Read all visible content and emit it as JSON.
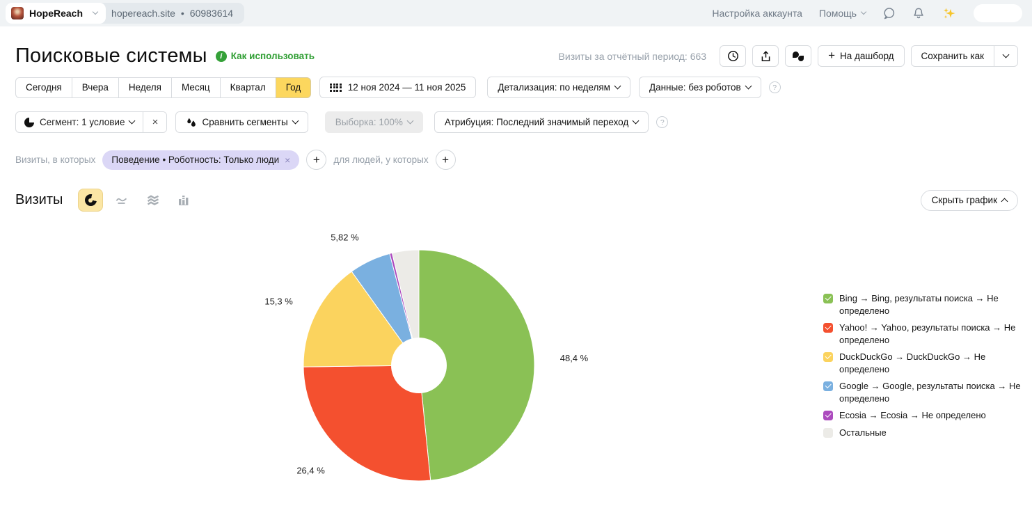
{
  "topbar": {
    "counter_name": "HopeReach",
    "site_domain": "hopereach.site",
    "separator": "•",
    "counter_id": "60983614",
    "account_settings": "Настройка аккаунта",
    "help": "Помощь"
  },
  "header": {
    "title": "Поисковые системы",
    "how_to_use_link": "Как использовать",
    "visits_period_summary": "Визиты за отчётный период: 663",
    "dashboard_button": "На дашборд",
    "save_as_button": "Сохранить как"
  },
  "toolbar": {
    "periods": [
      "Сегодня",
      "Вчера",
      "Неделя",
      "Месяц",
      "Квартал",
      "Год"
    ],
    "selected_period": "Год",
    "date_range": "12 ноя 2024 — 11 ноя 2025",
    "detalization": "Детализация: по неделям",
    "data_mode": "Данные: без роботов"
  },
  "segment_bar": {
    "segment": "Сегмент: 1 условие",
    "compare_segments": "Сравнить сегменты",
    "sampling": "Выборка: 100%",
    "attribution": "Атрибуция: Последний значимый переход"
  },
  "filter_bar": {
    "visits_label": "Визиты, в которых",
    "active_filter_chip": "Поведение • Роботность: Только люди",
    "people_label": "для людей, у которых"
  },
  "chart_section": {
    "metric_title": "Визиты",
    "hide_chart_button": "Скрыть график"
  },
  "chart_data": {
    "type": "pie",
    "donut": true,
    "title": "Визиты",
    "total_visits": 663,
    "unit": "%",
    "legend_position": "right",
    "accent_colors": {
      "selected_tab": "#fcd75e",
      "chip": "#dbd7f6",
      "link_green": "#2f9e33"
    },
    "slices": [
      {
        "name": "Bing → Bing, результаты поиска → Не определено",
        "value": 48.4,
        "label": "48,4 %",
        "color": "#8ac155",
        "checked": true
      },
      {
        "name": "Yahoo! → Yahoo, результаты поиска → Не определено",
        "value": 26.4,
        "label": "26,4 %",
        "color": "#f4502f",
        "checked": true
      },
      {
        "name": "DuckDuckGo → DuckDuckGo → Не определено",
        "value": 15.3,
        "label": "15,3 %",
        "color": "#fbd35e",
        "checked": true
      },
      {
        "name": "Google → Google, результаты поиска → Не определено",
        "value": 5.82,
        "label": "5,82 %",
        "color": "#7ab0e0",
        "checked": true
      },
      {
        "name": "Ecosia → Ecosia → Не определено",
        "value": 0.35,
        "label": "",
        "color": "#ac4bbe",
        "checked": true
      },
      {
        "name": "Остальные",
        "value": 3.73,
        "label": "",
        "color": "#ecebe7",
        "checked": false
      }
    ]
  }
}
